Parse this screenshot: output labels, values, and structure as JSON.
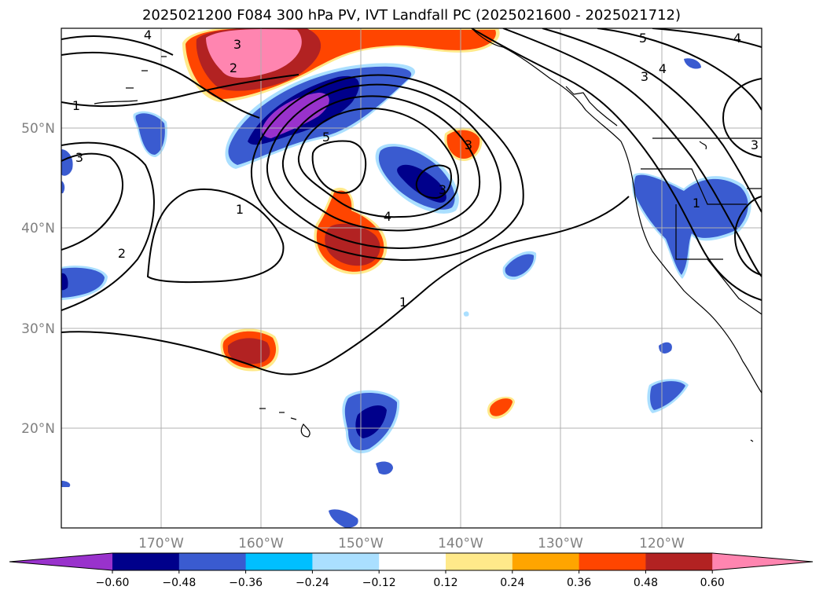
{
  "title": "2025021200 F084 300 hPa PV, IVT Landfall PC (2025021600 - 2025021712)",
  "map": {
    "lat_labels": [
      "50°N",
      "40°N",
      "30°N",
      "20°N"
    ],
    "lon_labels": [
      "170°W",
      "160°W",
      "150°W",
      "140°W",
      "130°W",
      "120°W"
    ],
    "contour_labels": [
      "1",
      "1",
      "1",
      "1",
      "2",
      "3",
      "3",
      "3",
      "3",
      "4",
      "4",
      "4",
      "4",
      "5",
      "5",
      "3",
      "2",
      "3"
    ],
    "gridline_color": "#b0b0b0"
  },
  "colorbar": {
    "ticks": [
      "−0.60",
      "−0.48",
      "−0.36",
      "−0.24",
      "−0.12",
      "0.12",
      "0.24",
      "0.36",
      "0.48",
      "0.60"
    ],
    "colors": [
      "#9932cc",
      "#00008b",
      "#3a5bd0",
      "#00bfff",
      "#aadfff",
      "#ffffff",
      "#ffe98a",
      "#ffa500",
      "#ff4500",
      "#b22222",
      "#ff85b0"
    ]
  }
}
